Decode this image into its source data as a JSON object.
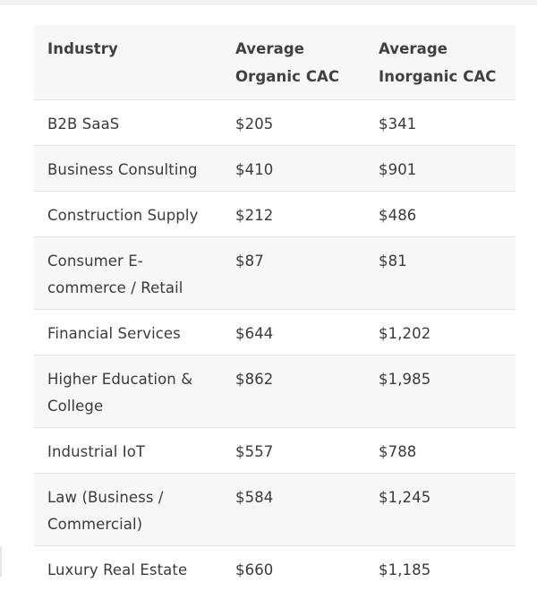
{
  "table": {
    "headers": {
      "industry": "Industry",
      "organic": "Average Organic CAC",
      "inorganic": "Average Inorganic CAC"
    },
    "rows": [
      {
        "industry": "B2B SaaS",
        "organic": "$205",
        "inorganic": "$341"
      },
      {
        "industry": "Business Consulting",
        "organic": "$410",
        "inorganic": "$901"
      },
      {
        "industry": "Construction Supply",
        "organic": "$212",
        "inorganic": "$486"
      },
      {
        "industry": "Consumer E-commerce / Retail",
        "organic": "$87",
        "inorganic": "$81"
      },
      {
        "industry": "Financial Services",
        "organic": "$644",
        "inorganic": "$1,202"
      },
      {
        "industry": "Higher Education & College",
        "organic": "$862",
        "inorganic": "$1,985"
      },
      {
        "industry": "Industrial IoT",
        "organic": "$557",
        "inorganic": "$788"
      },
      {
        "industry": "Law (Business / Commercial)",
        "organic": "$584",
        "inorganic": "$1,245"
      },
      {
        "industry": "Luxury Real Estate",
        "organic": "$660",
        "inorganic": "$1,185"
      }
    ]
  }
}
